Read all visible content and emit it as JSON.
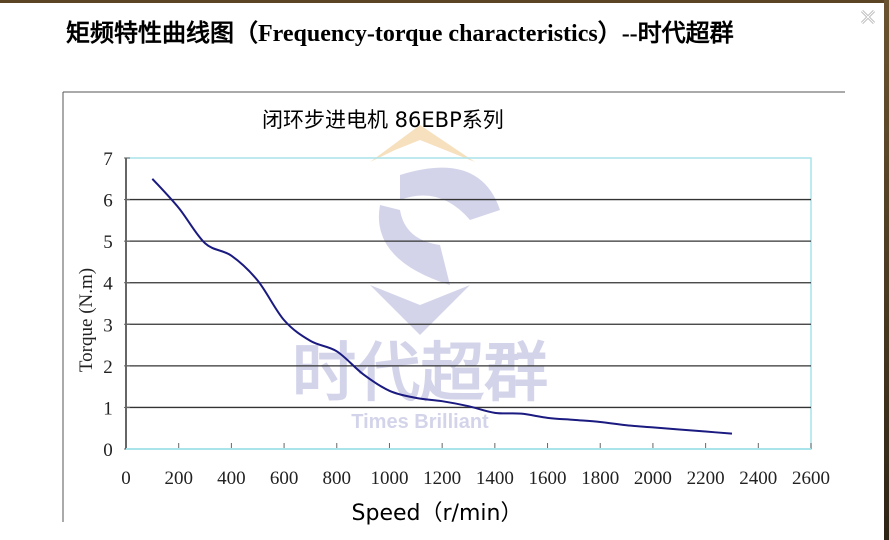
{
  "page": {
    "title": "矩频特性曲线图（Frequency-torque characteristics）--时代超群",
    "close_icon": "close-icon"
  },
  "watermark": {
    "brand_cn": "时代超群",
    "brand_en": "Times Brilliant"
  },
  "colors": {
    "line": "#1a1a80",
    "grid": "#333333",
    "frame": "#a8e4ea",
    "watermark": "#cfd0e8",
    "watermark_top": "#f6ddb8"
  },
  "chart_data": {
    "type": "line",
    "title": "闭环步进电机 86EBP系列",
    "xlabel": "Speed（r/min）",
    "ylabel": "Torque (N.m)",
    "xlim": [
      0,
      2600
    ],
    "ylim": [
      0,
      7
    ],
    "xticks": [
      "0",
      "200",
      "400",
      "600",
      "800",
      "1000",
      "1200",
      "1400",
      "1600",
      "1800",
      "2000",
      "2200",
      "2400",
      "2600"
    ],
    "yticks": [
      "0",
      "1",
      "2",
      "3",
      "4",
      "5",
      "6",
      "7"
    ],
    "grid": "horizontal",
    "series": [
      {
        "x": [
          100,
          200,
          300,
          400,
          500,
          600,
          700,
          800,
          900,
          1000,
          1100,
          1200,
          1300,
          1400,
          1500,
          1600,
          1700,
          1800,
          1900,
          2000,
          2100,
          2200,
          2300
        ],
        "y": [
          6.5,
          5.8,
          4.95,
          4.65,
          4.05,
          3.1,
          2.6,
          2.35,
          1.8,
          1.4,
          1.23,
          1.15,
          1.03,
          0.87,
          0.85,
          0.75,
          0.7,
          0.65,
          0.57,
          0.52,
          0.47,
          0.42,
          0.37
        ]
      }
    ]
  }
}
